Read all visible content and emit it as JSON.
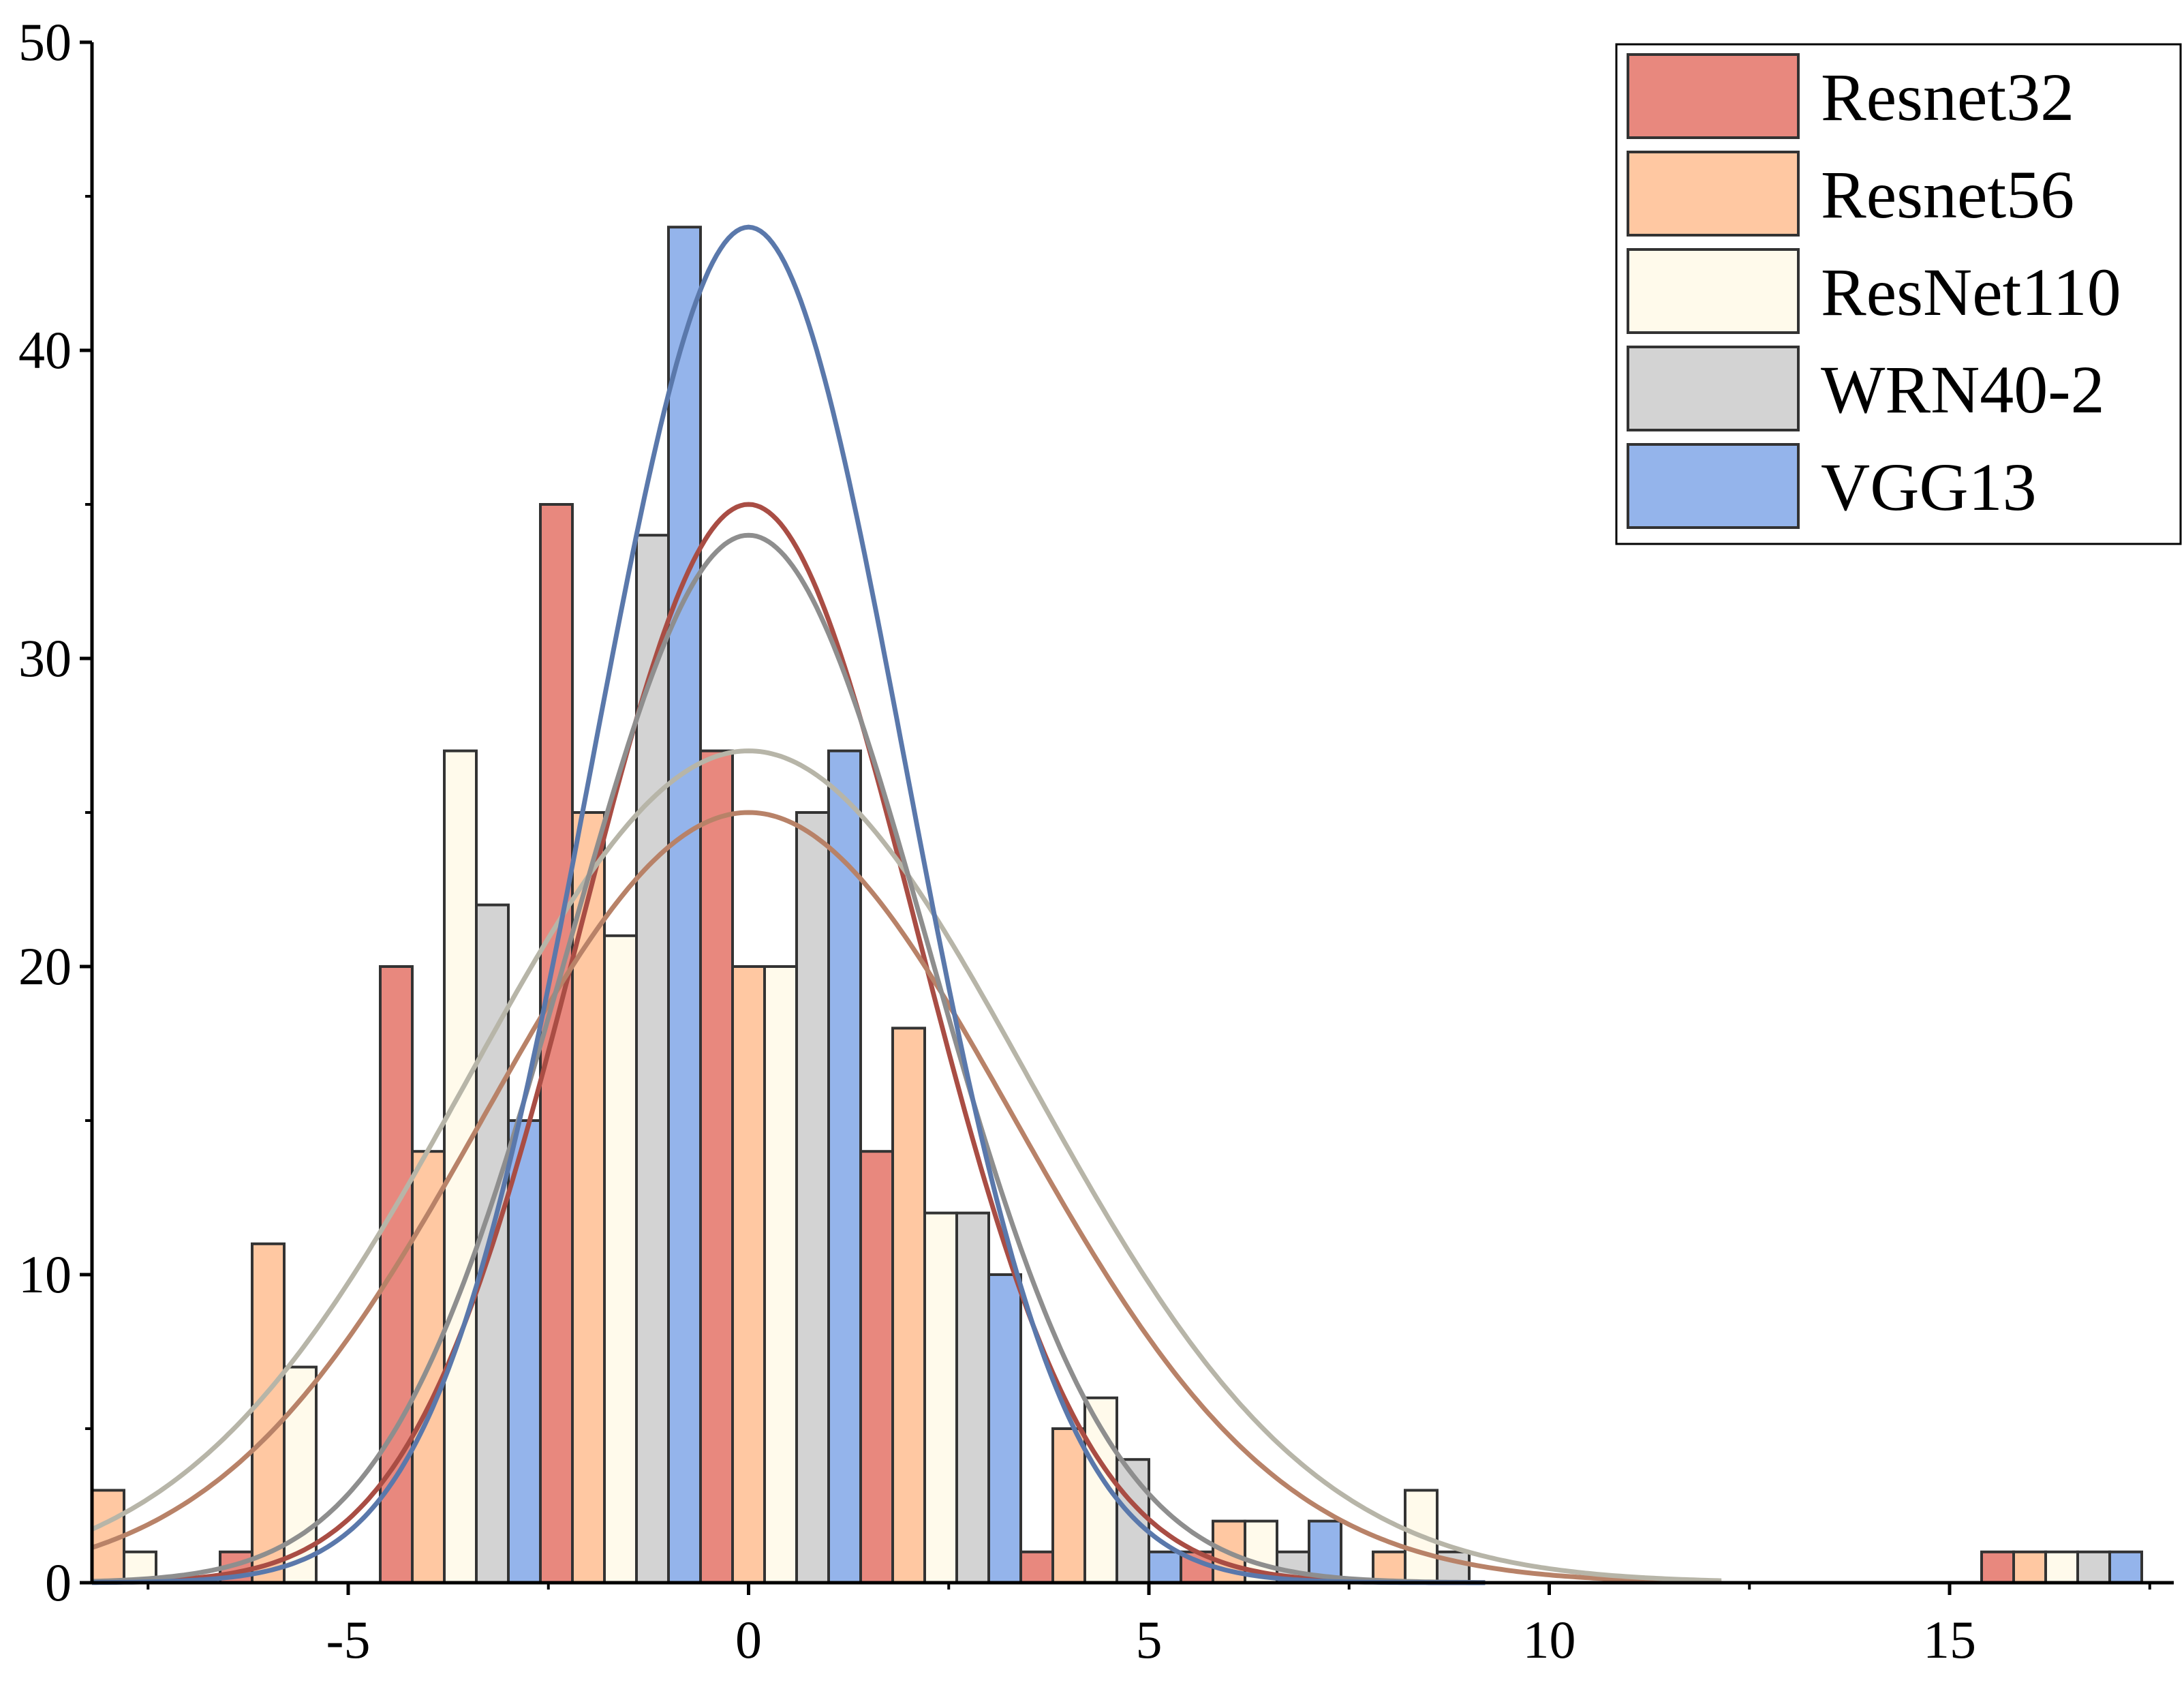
{
  "chart_data": {
    "type": "bar",
    "title": "",
    "xlabel": "",
    "ylabel": "",
    "xlim": [
      -8.2,
      17.8
    ],
    "ylim": [
      0,
      50
    ],
    "x_ticks": [
      -5,
      0,
      5,
      10,
      15
    ],
    "x_tick_labels": [
      "-5",
      "0",
      "5",
      "10",
      "15"
    ],
    "y_ticks": [
      0,
      10,
      20,
      30,
      40,
      50
    ],
    "y_tick_labels": [
      "0",
      "10",
      "20",
      "30",
      "40",
      "50"
    ],
    "bin_width": 2,
    "bin_centers": [
      -7.6,
      -5.6,
      -3.6,
      -1.6,
      0.4,
      2.4,
      4.4,
      6.4,
      8.4,
      16.4
    ],
    "grid": false,
    "legend_position": "top-right",
    "series": [
      {
        "name": "Resnet32",
        "color": "#e8887e",
        "line_color": "#a94d44",
        "offset": 0,
        "values": [
          0,
          1,
          20,
          35,
          27,
          14,
          1,
          1,
          0,
          1
        ],
        "fit": {
          "mean": 0,
          "peak": 35,
          "sd": 2.1
        }
      },
      {
        "name": "Resnet56",
        "color": "#ffc8a2",
        "line_color": "#b88268",
        "offset": 1,
        "values": [
          3,
          11,
          14,
          25,
          20,
          18,
          5,
          2,
          1,
          1
        ],
        "fit": {
          "mean": 0,
          "peak": 25,
          "sd": 3.3
        }
      },
      {
        "name": "ResNet110",
        "color": "#fffaeb",
        "line_color": "#b7b5a8",
        "offset": 2,
        "values": [
          1,
          7,
          27,
          21,
          20,
          12,
          6,
          2,
          3,
          1
        ],
        "fit": {
          "mean": 0,
          "peak": 27,
          "sd": 3.5
        }
      },
      {
        "name": "WRN40-2",
        "color": "#d3d3d3",
        "line_color": "#8e8e8e",
        "offset": 3,
        "values": [
          0,
          0,
          22,
          34,
          25,
          12,
          4,
          1,
          1,
          1
        ],
        "fit": {
          "mean": 0,
          "peak": 34,
          "sd": 2.25
        }
      },
      {
        "name": "VGG13",
        "color": "#94b4eb",
        "line_color": "#5a78ab",
        "offset": 4,
        "values": [
          0,
          0,
          15,
          44,
          27,
          10,
          1,
          2,
          0,
          1
        ],
        "fit": {
          "mean": 0,
          "peak": 44,
          "sd": 1.95
        }
      }
    ]
  }
}
